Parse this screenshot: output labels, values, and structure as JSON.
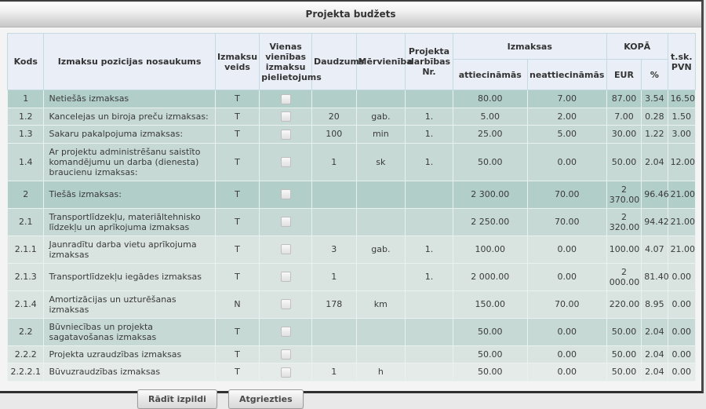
{
  "window": {
    "title": "Projekta budžets"
  },
  "colors": {
    "row_level_1": "#b2cec9",
    "row_level_2": "#c6d9d5",
    "row_level_3": "#d9e4e1",
    "row_level_4": "#e4ebe9",
    "header_bg": "#eaeff7",
    "titlebar_gradient_bottom": "#c7c7c7"
  },
  "table": {
    "headers": {
      "kods": "Kods",
      "nosaukums": "Izmaksu pozicijas nosaukums",
      "veids": "Izmaksu veids",
      "pielietojums": "Vienas vienības izmaksu pielietojums",
      "daudzums": "Daudzums",
      "mervieniba": "Mērvienība",
      "nr": "Projekta darbības Nr.",
      "izmaksas_group": "Izmaksas",
      "attiecinamas": "attiecināmās",
      "neattiecinamas": "neattiecināmās",
      "kopa_group": "KOPĀ",
      "eur": "EUR",
      "procenti": "%",
      "pvn": "t.sk. PVN"
    },
    "rows": [
      {
        "code": "1",
        "name": "Netiešās izmaksas",
        "level": 1,
        "type": "T",
        "qty": "",
        "unit": "",
        "nr": "",
        "att": "80.00",
        "neatt": "7.00",
        "eur": "87.00",
        "pct": "3.54",
        "pvn": "16.50"
      },
      {
        "code": "1.2",
        "name": "Kancelejas un biroja preču izmaksas:",
        "level": 2,
        "type": "T",
        "qty": "20",
        "unit": "gab.",
        "nr": "1.",
        "att": "5.00",
        "neatt": "2.00",
        "eur": "7.00",
        "pct": "0.28",
        "pvn": "1.50"
      },
      {
        "code": "1.3",
        "name": "Sakaru pakalpojuma izmaksas:",
        "level": 2,
        "type": "T",
        "qty": "100",
        "unit": "min",
        "nr": "1.",
        "att": "25.00",
        "neatt": "5.00",
        "eur": "30.00",
        "pct": "1.22",
        "pvn": "3.00"
      },
      {
        "code": "1.4",
        "name": "Ar projektu administrēšanu saistīto komandējumu un darba (dienesta) braucienu izmaksas:",
        "level": 2,
        "type": "T",
        "qty": "1",
        "unit": "sk",
        "nr": "1.",
        "att": "50.00",
        "neatt": "0.00",
        "eur": "50.00",
        "pct": "2.04",
        "pvn": "12.00"
      },
      {
        "code": "2",
        "name": "Tiešās izmaksas:",
        "level": 1,
        "type": "T",
        "qty": "",
        "unit": "",
        "nr": "",
        "att": "2 300.00",
        "neatt": "70.00",
        "eur": "2 370.00",
        "pct": "96.46",
        "pvn": "21.00"
      },
      {
        "code": "2.1",
        "name": "Transportlīdzekļu, materiāltehnisko līdzekļu un aprīkojuma izmaksas",
        "level": 2,
        "type": "T",
        "qty": "",
        "unit": "",
        "nr": "",
        "att": "2 250.00",
        "neatt": "70.00",
        "eur": "2 320.00",
        "pct": "94.42",
        "pvn": "21.00"
      },
      {
        "code": "2.1.1",
        "name": "Jaunradītu darba vietu aprīkojuma izmaksas",
        "level": 3,
        "type": "T",
        "qty": "3",
        "unit": "gab.",
        "nr": "1.",
        "att": "100.00",
        "neatt": "0.00",
        "eur": "100.00",
        "pct": "4.07",
        "pvn": "21.00"
      },
      {
        "code": "2.1.3",
        "name": "Transportlīdzekļu iegādes izmaksas",
        "level": 3,
        "type": "T",
        "qty": "1",
        "unit": "",
        "nr": "1.",
        "att": "2 000.00",
        "neatt": "0.00",
        "eur": "2 000.00",
        "pct": "81.40",
        "pvn": "0.00"
      },
      {
        "code": "2.1.4",
        "name": "Amortizācijas un uzturēšanas izmaksas",
        "level": 3,
        "type": "N",
        "qty": "178",
        "unit": "km",
        "nr": "",
        "att": "150.00",
        "neatt": "70.00",
        "eur": "220.00",
        "pct": "8.95",
        "pvn": "0.00"
      },
      {
        "code": "2.2",
        "name": "Būvniecības un projekta sagatavošanas izmaksas",
        "level": 2,
        "type": "T",
        "qty": "",
        "unit": "",
        "nr": "",
        "att": "50.00",
        "neatt": "0.00",
        "eur": "50.00",
        "pct": "2.04",
        "pvn": "0.00"
      },
      {
        "code": "2.2.2",
        "name": "Projekta uzraudzības izmaksas",
        "level": 3,
        "type": "T",
        "qty": "",
        "unit": "",
        "nr": "",
        "att": "50.00",
        "neatt": "0.00",
        "eur": "50.00",
        "pct": "2.04",
        "pvn": "0.00"
      },
      {
        "code": "2.2.2.1",
        "name": "Būvuzraudzības izmaksas",
        "level": 4,
        "type": "T",
        "qty": "1",
        "unit": "h",
        "nr": "",
        "att": "50.00",
        "neatt": "0.00",
        "eur": "50.00",
        "pct": "2.04",
        "pvn": "0.00"
      }
    ]
  },
  "footer": {
    "show_execution_label": "Rādīt izpildi",
    "back_label": "Atgriezties"
  }
}
